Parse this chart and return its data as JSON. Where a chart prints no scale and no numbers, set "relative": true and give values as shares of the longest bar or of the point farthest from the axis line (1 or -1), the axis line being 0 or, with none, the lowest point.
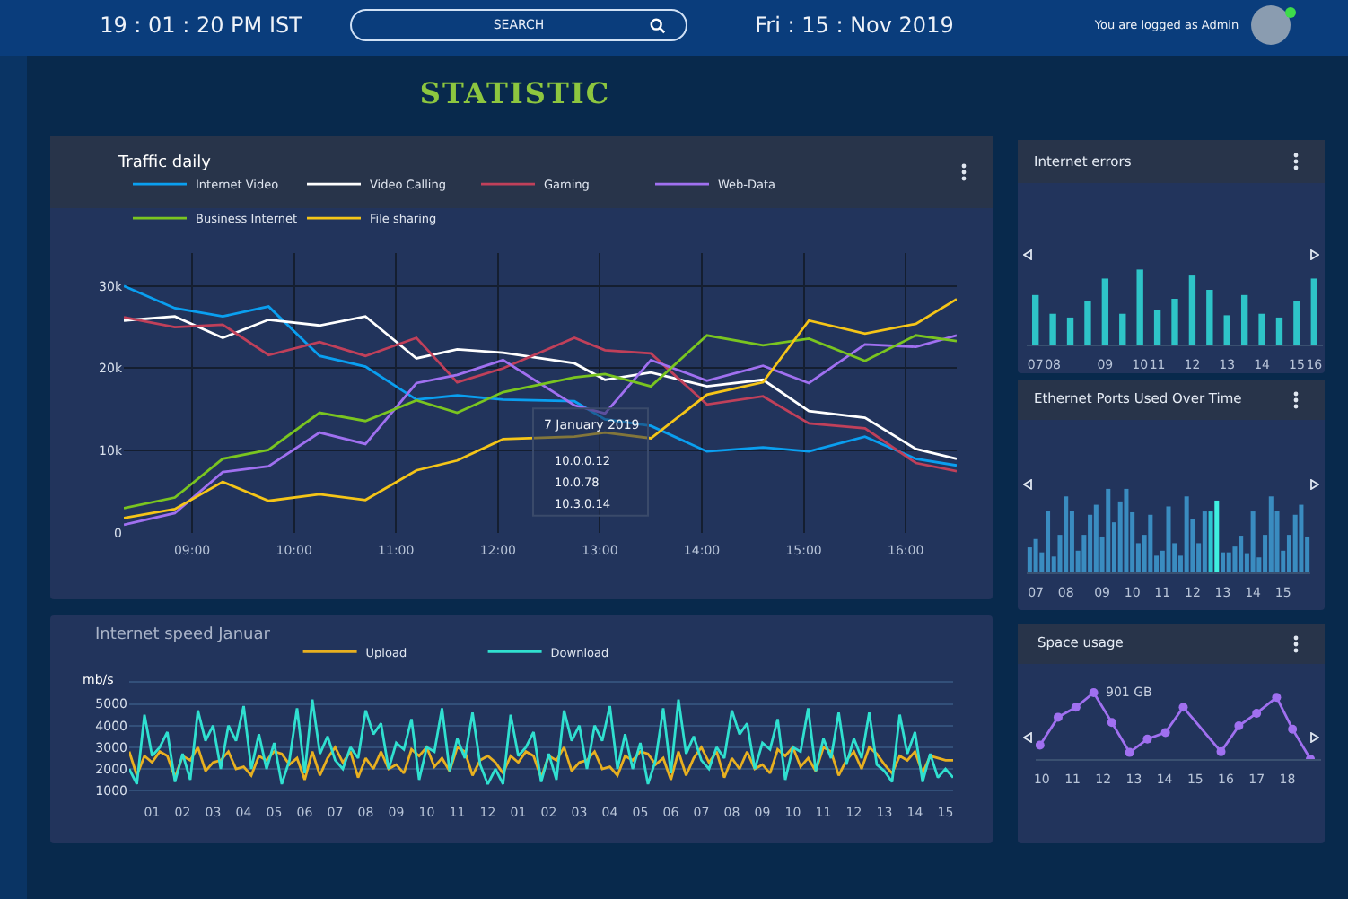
{
  "chart_data": [
    {
      "type": "other",
      "title": "STATISTIC",
      "annotations": [
        "19 : 01 : 20 PM IST",
        "SEARCH",
        "Fri : 15 : Nov 2019",
        "You are logged as Admin"
      ]
    },
    {
      "type": "line",
      "title": "Traffic daily",
      "x": [
        8.33,
        8.83,
        9.3,
        9.75,
        10.25,
        10.7,
        11.2,
        11.6,
        12.05,
        12.75,
        13.05,
        13.5,
        14.05,
        14.6,
        15.05,
        15.6,
        16.1,
        16.5
      ],
      "series": [
        {
          "name": "Internet Video",
          "color": "#0a9ff0",
          "values": [
            30000,
            27300,
            26300,
            27500,
            21500,
            20200,
            16200,
            16700,
            16200,
            16000,
            13800,
            13000,
            9900,
            10400,
            9900,
            11700,
            9000,
            8200
          ]
        },
        {
          "name": "Video Calling",
          "color": "#ffffff",
          "values": [
            25800,
            26300,
            23700,
            25900,
            25200,
            26300,
            21200,
            22300,
            21900,
            20600,
            18600,
            19500,
            17800,
            18600,
            14800,
            14000,
            10200,
            9000
          ]
        },
        {
          "name": "Gaming",
          "color": "#c0405a",
          "values": [
            26200,
            25000,
            25300,
            21600,
            23200,
            21500,
            23700,
            18300,
            20000,
            23700,
            22200,
            21800,
            15600,
            16600,
            13300,
            12700,
            8500,
            7500
          ]
        },
        {
          "name": "Web-Data",
          "color": "#a070f0",
          "values": [
            1000,
            2400,
            7400,
            8100,
            12200,
            10800,
            18200,
            19200,
            21000,
            15500,
            14500,
            21000,
            18500,
            20300,
            18200,
            22900,
            22600,
            24000
          ]
        },
        {
          "name": "Business Internet",
          "color": "#7ac520",
          "values": [
            3000,
            4300,
            9000,
            10100,
            14600,
            13600,
            16100,
            14600,
            17100,
            18900,
            19300,
            17800,
            24000,
            22800,
            23600,
            20900,
            24000,
            23300
          ]
        },
        {
          "name": "File sharing",
          "color": "#f5c518",
          "values": [
            1800,
            2900,
            6200,
            3900,
            4700,
            4000,
            7600,
            8800,
            11400,
            11700,
            12200,
            11500,
            16800,
            18300,
            25800,
            24200,
            25400,
            28400
          ]
        }
      ],
      "xlim": [
        8.33,
        16.5
      ],
      "xticks": [
        {
          "value": 9,
          "label": "09:00"
        },
        {
          "value": 10,
          "label": "10:00"
        },
        {
          "value": 11,
          "label": "11:00"
        },
        {
          "value": 12,
          "label": "12:00"
        },
        {
          "value": 13,
          "label": "13:00"
        },
        {
          "value": 14,
          "label": "14:00"
        },
        {
          "value": 15,
          "label": "15:00"
        },
        {
          "value": 16,
          "label": "16:00"
        }
      ],
      "ylim": [
        0,
        34000
      ],
      "yticks": [
        0,
        {
          "value": 10000,
          "label": "10k"
        },
        {
          "value": 20000,
          "label": "20k"
        },
        {
          "value": 30000,
          "label": "30k"
        }
      ],
      "grid": true,
      "legend": "top left",
      "marker": "none",
      "annotations": [
        "7 January 2019",
        "10.0.0.12",
        "10.0.78",
        "10.3.0.14"
      ]
    },
    {
      "type": "line",
      "title": "Internet speed Januar",
      "ylabel": "mb/s",
      "categories": [
        null,
        null,
        null,
        "01",
        null,
        null,
        null,
        "02",
        null,
        null,
        null,
        "03",
        null,
        null,
        null,
        "04",
        null,
        null,
        null,
        "05",
        null,
        null,
        null,
        "06",
        null,
        null,
        null,
        "07",
        null,
        null,
        null,
        "08",
        null,
        null,
        null,
        "09",
        null,
        null,
        null,
        "10",
        null,
        null,
        null,
        "11",
        null,
        null,
        null,
        "12",
        null,
        null,
        null,
        "01",
        null,
        null,
        null,
        "02",
        null,
        null,
        null,
        "03",
        null,
        null,
        null,
        "04",
        null,
        null,
        null,
        "05",
        null,
        null,
        null,
        "06",
        null,
        null,
        null,
        "07",
        null,
        null,
        null,
        "08",
        null,
        null,
        null,
        "09",
        null,
        null,
        null,
        "10",
        null,
        null,
        null,
        "11",
        null,
        null,
        null,
        "12",
        null,
        null,
        null,
        "13",
        null,
        null,
        null,
        "14",
        null,
        null,
        null,
        "15",
        null
      ],
      "series": [
        {
          "name": "Upload",
          "color": "#e8b020",
          "values": [
            2800,
            1700,
            2600,
            2300,
            2800,
            2600,
            1600,
            2600,
            2400,
            3000,
            1900,
            2300,
            2400,
            2800,
            2000,
            2100,
            1700,
            2600,
            2400,
            2800,
            2700,
            2200,
            2500,
            1500,
            2800,
            1700,
            2500,
            3000,
            2300,
            2800,
            1600,
            2500,
            2000,
            2800,
            2000,
            2200,
            1800,
            2900,
            2600,
            3000,
            2100,
            2500,
            1900,
            3000,
            2800,
            1700,
            2400,
            2600,
            2300,
            1800,
            2600,
            2300,
            2800,
            2600,
            1600,
            2600,
            2400,
            3000,
            1900,
            2300,
            2400,
            2800,
            2000,
            2100,
            1700,
            2600,
            2400,
            2800,
            2700,
            2200,
            2500,
            1500,
            2800,
            1700,
            2500,
            3000,
            2300,
            2800,
            1600,
            2500,
            2000,
            2800,
            2000,
            2200,
            1800,
            2900,
            2600,
            3000,
            2100,
            2500,
            1900,
            3000,
            2800,
            1700,
            2400,
            2800,
            2000,
            3000,
            2700,
            2200,
            1800,
            2600,
            2400,
            2800,
            1800,
            2600,
            2500,
            2400,
            2400
          ]
        },
        {
          "name": "Download",
          "color": "#30e0d0",
          "values": [
            2000,
            1300,
            4500,
            2600,
            3000,
            3700,
            1400,
            2700,
            1500,
            4700,
            3300,
            4000,
            2000,
            4000,
            3300,
            4900,
            2000,
            3600,
            2000,
            3200,
            1300,
            2400,
            4800,
            1800,
            5200,
            2700,
            3500,
            2400,
            2000,
            3000,
            2500,
            4700,
            3600,
            4100,
            2000,
            3200,
            2900,
            4300,
            1500,
            3000,
            2800,
            4800,
            1900,
            3400,
            2500,
            4600,
            2200,
            1300,
            2000,
            1300,
            4500,
            2600,
            3000,
            3700,
            1400,
            2700,
            1500,
            4700,
            3300,
            4000,
            2000,
            4000,
            3300,
            4900,
            2000,
            3600,
            2000,
            3200,
            1300,
            2400,
            4800,
            1800,
            5200,
            2700,
            3500,
            2400,
            2000,
            3000,
            2500,
            4700,
            3600,
            4100,
            2000,
            3200,
            2900,
            4300,
            1500,
            3000,
            2800,
            4800,
            1900,
            3400,
            2500,
            4600,
            2200,
            3400,
            2500,
            4600,
            2200,
            1900,
            1400,
            4500,
            2700,
            3700,
            1400,
            2700,
            1600,
            2000,
            1600
          ]
        }
      ],
      "ylim": [
        800,
        6100
      ],
      "yticks": [
        1000,
        2000,
        3000,
        4000,
        5000,
        {
          "value": 6000,
          "label": null
        }
      ],
      "grid": "y",
      "legend": "top",
      "marker": "none"
    },
    {
      "type": "bar",
      "title": "Internet errors",
      "relative": true,
      "color": "#2ec4c8",
      "categories": [
        "07",
        "08",
        null,
        null,
        "09",
        null,
        "10",
        "11",
        null,
        "12",
        null,
        "13",
        null,
        "14",
        null,
        "15",
        "16"
      ],
      "values": [
        0.66,
        0.41,
        0.36,
        0.58,
        0.88,
        0.41,
        1,
        0.46,
        0.61,
        0.92,
        0.73,
        0.39,
        0.66,
        0.41,
        0.36,
        0.58,
        0.88
      ]
    },
    {
      "type": "bar",
      "title": "Ethernet Ports Used Over Time",
      "relative": true,
      "categories": [
        null,
        "07",
        null,
        null,
        null,
        null,
        "08",
        null,
        null,
        null,
        null,
        null,
        "09",
        null,
        null,
        null,
        null,
        "10",
        null,
        null,
        null,
        null,
        "11",
        null,
        null,
        null,
        null,
        "12",
        null,
        null,
        null,
        null,
        "13",
        null,
        null,
        null,
        null,
        "14",
        null,
        null,
        null,
        null,
        "15",
        null,
        null,
        null,
        null
      ],
      "values": [
        0.3,
        0.4,
        0.24,
        0.74,
        0.19,
        0.45,
        0.91,
        0.74,
        0.26,
        0.45,
        0.69,
        0.81,
        0.43,
        1,
        0.6,
        0.85,
        1,
        0.72,
        0.35,
        0.45,
        0.69,
        0.2,
        0.26,
        0.79,
        0.35,
        0.2,
        0.91,
        0.64,
        0.35,
        0.73,
        0.73,
        0.86,
        0.24,
        0.24,
        0.31,
        0.44,
        0.23,
        0.73,
        0.18,
        0.45,
        0.91,
        0.74,
        0.26,
        0.45,
        0.69,
        0.81,
        0.43
      ],
      "colors": [
        "#3a8cc0",
        "#3a8cc0",
        "#3a8cc0",
        "#3a8cc0",
        "#3a8cc0",
        "#3a8cc0",
        "#3a8cc0",
        "#3a8cc0",
        "#3a8cc0",
        "#3a8cc0",
        "#3a8cc0",
        "#3a8cc0",
        "#3a8cc0",
        "#3a8cc0",
        "#3a8cc0",
        "#3a8cc0",
        "#3a8cc0",
        "#3a8cc0",
        "#3a8cc0",
        "#3a8cc0",
        "#3a8cc0",
        "#3a8cc0",
        "#3a8cc0",
        "#3a8cc0",
        "#3a8cc0",
        "#3a8cc0",
        "#3a8cc0",
        "#3a8cc0",
        "#3a8cc0",
        "#3a8cc0",
        "#2fc6d2",
        "#3ff0e0",
        "#3a8cc0",
        "#3a8cc0",
        "#3a8cc0",
        "#3a8cc0",
        "#3a8cc0",
        "#3a8cc0",
        "#3a8cc0",
        "#3a8cc0",
        "#3a8cc0",
        "#3a8cc0",
        "#3a8cc0",
        "#3a8cc0",
        "#3a8cc0",
        "#3a8cc0",
        "#3a8cc0"
      ]
    },
    {
      "type": "line",
      "title": "Space usage",
      "relative": true,
      "color": "#a070f0",
      "marker": "circle",
      "x": [
        9.94,
        10.53,
        11.11,
        11.69,
        12.28,
        12.86,
        13.44,
        14.03,
        14.61,
        15.84,
        16.42,
        17.0,
        17.65,
        18.17,
        18.75
      ],
      "values": [
        0.21,
        0.63,
        0.78,
        1,
        0.55,
        0.1,
        0.3,
        0.4,
        0.78,
        0.11,
        0.5,
        0.69,
        0.93,
        0.45,
        0
      ],
      "xlim": [
        9.8,
        19.1
      ],
      "xticks": [
        10,
        11,
        12,
        13,
        14,
        15,
        16,
        17,
        18
      ],
      "annotations": [
        {
          "text": "901 GB",
          "x": 11.69,
          "y": 1
        }
      ]
    }
  ]
}
